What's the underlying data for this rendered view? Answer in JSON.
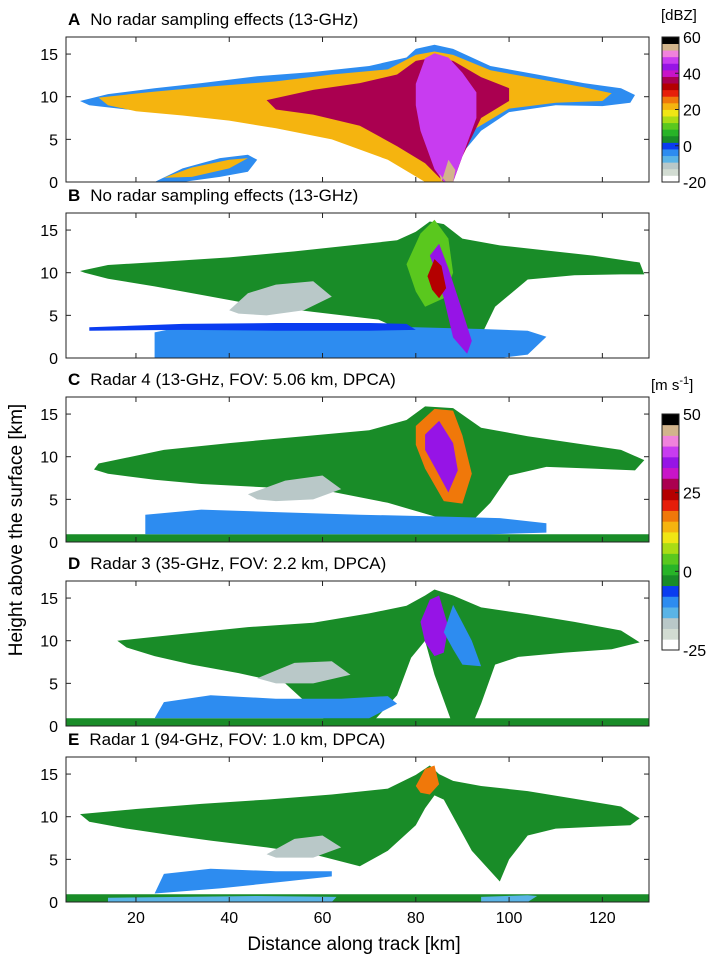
{
  "figure": {
    "xlabel": "Distance along track [km]",
    "ylabel": "Height above the surface [km]",
    "x_ticks": [
      "20",
      "40",
      "60",
      "80",
      "100",
      "120"
    ],
    "y_ticks": [
      "0",
      "5",
      "10",
      "15"
    ]
  },
  "colorbars": [
    {
      "unit": "[dBZ]",
      "range": [
        -20,
        60
      ],
      "ticks": [
        "60",
        "40",
        "20",
        "0",
        "-20"
      ],
      "colors": [
        "#ffffff",
        "#d2dcd2",
        "#b9c8c8",
        "#5ab4e6",
        "#2d8cf0",
        "#0a3cf0",
        "#198c28",
        "#28b428",
        "#5ac81e",
        "#aadc14",
        "#f0e614",
        "#f5b40f",
        "#f0780a",
        "#e61e0a",
        "#b40000",
        "#aa0050",
        "#c814c8",
        "#9614e6",
        "#c83cf0",
        "#f082dc",
        "#d2b48c",
        "#000000"
      ]
    },
    {
      "unit": "[m s",
      "unit_sup": "-1",
      "unit_close": "]",
      "range": [
        -25,
        50
      ],
      "ticks": [
        "50",
        "25",
        "0",
        "-25"
      ],
      "colors": [
        "#ffffff",
        "#d2dcd2",
        "#b9c8c8",
        "#5ab4e6",
        "#2d8cf0",
        "#0a3cf0",
        "#198c28",
        "#28b428",
        "#5ac81e",
        "#aadc14",
        "#f0e614",
        "#f5b40f",
        "#f0780a",
        "#e61e0a",
        "#b40000",
        "#aa0050",
        "#c814c8",
        "#9614e6",
        "#c83cf0",
        "#f082dc",
        "#d2b48c",
        "#000000"
      ]
    }
  ],
  "chart_data": [
    {
      "panel": "A",
      "type": "heatmap",
      "title": "No radar sampling effects (13-GHz)",
      "variable": "reflectivity",
      "colorbar": 0,
      "xlim": [
        5,
        130
      ],
      "ylim": [
        0,
        17
      ],
      "layers": [
        {
          "value": -5,
          "x": [
            8,
            14,
            24,
            34,
            46,
            58,
            70,
            78,
            80,
            84,
            88,
            96,
            106,
            116,
            124,
            127,
            126,
            120,
            110,
            100,
            94,
            90,
            88,
            86,
            80,
            72,
            60,
            48,
            38,
            28,
            18,
            10
          ],
          "y": [
            9.5,
            10.3,
            11,
            11.6,
            12.4,
            12.9,
            13.6,
            14.6,
            15.6,
            16.1,
            15.6,
            13.6,
            12.6,
            11.6,
            11,
            10.2,
            9.3,
            8.9,
            9,
            8.2,
            6,
            3.4,
            0,
            0,
            2,
            4.5,
            5.9,
            6.9,
            7.6,
            8.1,
            8.5,
            9
          ]
        },
        {
          "value": -5,
          "x": [
            24,
            30,
            38,
            44,
            46,
            44,
            38,
            30,
            24
          ],
          "y": [
            0,
            1.6,
            2.8,
            3.2,
            2.6,
            1.2,
            0.6,
            0,
            0
          ]
        },
        {
          "value": 20,
          "x": [
            12,
            24,
            36,
            50,
            62,
            74,
            80,
            84,
            88,
            96,
            106,
            116,
            122,
            120,
            110,
            100,
            92,
            88,
            86,
            82,
            74,
            62,
            50,
            40,
            30,
            20,
            14
          ],
          "y": [
            9.9,
            10.6,
            11.2,
            11.8,
            12.6,
            13.2,
            14.9,
            15.3,
            14.9,
            13.1,
            12.1,
            11.1,
            10.4,
            9.5,
            9.3,
            8.6,
            6,
            2.5,
            0,
            0,
            2.6,
            5,
            6.3,
            7.2,
            7.8,
            8.3,
            9
          ]
        },
        {
          "value": 20,
          "x": [
            26,
            32,
            40,
            44,
            40,
            32,
            26
          ],
          "y": [
            0.5,
            1.7,
            2.6,
            2.8,
            1.6,
            0.6,
            0.5
          ]
        },
        {
          "value": 35,
          "x": [
            48,
            58,
            68,
            76,
            80,
            84,
            88,
            94,
            100,
            100,
            94,
            90,
            88,
            86,
            82,
            76,
            68,
            58,
            50
          ],
          "y": [
            9.6,
            10.8,
            11.6,
            12.6,
            14.2,
            14.6,
            14.2,
            12.3,
            11,
            9.5,
            7.5,
            3,
            0,
            0,
            2.2,
            4.2,
            6.6,
            7.9,
            8.5
          ]
        },
        {
          "value": 47,
          "x": [
            80,
            82,
            84,
            87,
            90,
            93,
            93,
            90,
            88,
            86,
            84,
            81,
            80
          ],
          "y": [
            11.5,
            14.5,
            15.1,
            14.6,
            12.8,
            10.5,
            7.5,
            3,
            0,
            0,
            1.5,
            6,
            9
          ]
        },
        {
          "value": 55,
          "x": [
            85.5,
            87,
            88.5,
            88,
            86.5,
            85
          ],
          "y": [
            0,
            2.6,
            1.4,
            0,
            0,
            1
          ]
        }
      ]
    },
    {
      "panel": "B",
      "type": "heatmap",
      "title": "No radar sampling effects (13-GHz)",
      "variable": "Doppler velocity",
      "colorbar": 1,
      "xlim": [
        5,
        130
      ],
      "ylim": [
        0,
        17
      ],
      "layers": [
        {
          "value": -3,
          "x": [
            8,
            14,
            26,
            40,
            54,
            66,
            76,
            80,
            83,
            86,
            90,
            98,
            108,
            118,
            128,
            129,
            124,
            114,
            104,
            97,
            94,
            92,
            90,
            86,
            82,
            72,
            58,
            46,
            34,
            24,
            14,
            9
          ],
          "y": [
            10.2,
            10.9,
            11.3,
            11.8,
            12.5,
            13.2,
            13.8,
            14.8,
            16,
            15.7,
            14,
            13.2,
            12.6,
            12,
            11.2,
            9.8,
            9.8,
            9.7,
            9.2,
            6,
            2.6,
            0,
            0,
            0,
            2,
            4.5,
            5.4,
            6.2,
            7.4,
            8.4,
            9.3,
            10
          ]
        },
        {
          "value": -10,
          "x": [
            24,
            40,
            58,
            74,
            88,
            98,
            104,
            108,
            104,
            94,
            80,
            64,
            48,
            32,
            24
          ],
          "y": [
            0,
            0,
            0,
            0,
            0,
            0,
            0.4,
            2.5,
            3.2,
            3.4,
            3.6,
            3.7,
            3.8,
            3.9,
            3
          ]
        },
        {
          "value": -5,
          "x": [
            10,
            30,
            50,
            70,
            78,
            80,
            70,
            50,
            30,
            10
          ],
          "y": [
            3.6,
            4,
            4.1,
            4.1,
            4,
            3.3,
            3.2,
            3.2,
            3.3,
            3.2
          ]
        },
        {
          "value": -16,
          "x": [
            40,
            44,
            50,
            58,
            62,
            56,
            48,
            42
          ],
          "y": [
            5.6,
            7.6,
            8.6,
            9,
            7.2,
            5.6,
            5,
            5.2
          ]
        },
        {
          "value": 5,
          "x": [
            78,
            81,
            84,
            87,
            88,
            86,
            82,
            80
          ],
          "y": [
            11,
            14.6,
            16.2,
            14,
            10,
            7,
            6,
            7.8
          ]
        },
        {
          "value": 33,
          "x": [
            83,
            85,
            87,
            90,
            92,
            91,
            88,
            86,
            84
          ],
          "y": [
            12,
            13.4,
            10.5,
            5.5,
            2,
            0.5,
            2.4,
            7,
            10.6
          ]
        },
        {
          "value": 25,
          "x": [
            82.5,
            84,
            85.5,
            86.5,
            85,
            83.5
          ],
          "y": [
            9.6,
            11.6,
            10.8,
            8.2,
            7,
            8
          ]
        }
      ]
    },
    {
      "panel": "C",
      "type": "heatmap",
      "title": "Radar 4 (13-GHz, FOV: 5.06 km, DPCA)",
      "variable": "Doppler velocity",
      "colorbar": 1,
      "xlim": [
        5,
        130
      ],
      "ylim": [
        0,
        17
      ],
      "layers": [
        {
          "value": -3,
          "x": [
            5,
            130,
            130,
            5
          ],
          "y": [
            0,
            0,
            0.9,
            0.9
          ]
        },
        {
          "value": -3,
          "x": [
            12,
            26,
            40,
            56,
            70,
            78,
            82,
            88,
            94,
            104,
            114,
            124,
            129,
            127,
            118,
            108,
            100,
            96,
            92,
            84,
            74,
            62,
            48,
            34,
            24,
            14,
            11
          ],
          "y": [
            9.2,
            10.8,
            11.6,
            12.4,
            13.1,
            14.3,
            15.9,
            15.7,
            13.4,
            12.4,
            11.6,
            10.8,
            9.6,
            8.4,
            8.6,
            8.8,
            7.8,
            4.6,
            2.4,
            3,
            4.6,
            5.9,
            6.4,
            6.8,
            7.3,
            8,
            8.5
          ]
        },
        {
          "value": -10,
          "x": [
            22,
            40,
            60,
            80,
            96,
            108,
            108,
            98,
            84,
            68,
            50,
            34,
            22
          ],
          "y": [
            0.9,
            0.9,
            0.9,
            0.9,
            0.9,
            1.1,
            2.2,
            2.8,
            3,
            3.2,
            3.5,
            3.8,
            3.2
          ]
        },
        {
          "value": -16,
          "x": [
            44,
            52,
            60,
            64,
            58,
            50,
            46
          ],
          "y": [
            5.6,
            7.2,
            7.8,
            6.2,
            5,
            4.8,
            5
          ]
        },
        {
          "value": 18,
          "x": [
            80,
            84,
            88,
            90,
            92,
            90,
            86,
            82,
            80
          ],
          "y": [
            13.6,
            15.6,
            15.4,
            12.5,
            8,
            4.5,
            4.8,
            8.6,
            11.4
          ]
        },
        {
          "value": 35,
          "x": [
            82,
            85,
            88,
            89,
            87,
            84,
            82
          ],
          "y": [
            12.6,
            14.2,
            11.6,
            8.4,
            5.8,
            8.8,
            10.8
          ]
        }
      ]
    },
    {
      "panel": "D",
      "type": "heatmap",
      "title": "Radar 3 (35-GHz, FOV: 2.2 km, DPCA)",
      "variable": "Doppler velocity",
      "colorbar": 1,
      "xlim": [
        5,
        130
      ],
      "ylim": [
        0,
        17
      ],
      "layers": [
        {
          "value": -3,
          "x": [
            5,
            130,
            130,
            5
          ],
          "y": [
            0,
            0,
            0.9,
            0.9
          ]
        },
        {
          "value": -3,
          "x": [
            16,
            30,
            44,
            58,
            70,
            78,
            82,
            84,
            88,
            94,
            104,
            114,
            124,
            128,
            122,
            112,
            102,
            97,
            94,
            92,
            88,
            84,
            82,
            79,
            76,
            70,
            62,
            52,
            42,
            32,
            24,
            18
          ],
          "y": [
            10,
            10.8,
            11.6,
            12.1,
            13.2,
            14.1,
            15.3,
            16,
            15.3,
            13.9,
            13.1,
            12.2,
            11.2,
            9.8,
            9,
            8.6,
            8.1,
            7.2,
            2.6,
            0,
            0,
            6,
            10,
            8,
            3.6,
            0,
            0,
            5,
            6.2,
            7.2,
            8.2,
            9.2
          ]
        },
        {
          "value": -10,
          "x": [
            24,
            40,
            56,
            70,
            76,
            74,
            64,
            50,
            36,
            26
          ],
          "y": [
            0.9,
            0.9,
            0.9,
            0.9,
            2.6,
            3.5,
            3.2,
            3.2,
            3.6,
            2.8
          ]
        },
        {
          "value": -16,
          "x": [
            46,
            54,
            62,
            66,
            58,
            50
          ],
          "y": [
            5.6,
            7.4,
            7.6,
            6,
            5,
            5
          ]
        },
        {
          "value": 33,
          "x": [
            81,
            83,
            85,
            87,
            86,
            84,
            82
          ],
          "y": [
            12.2,
            14.8,
            15.3,
            11.6,
            8.6,
            8.2,
            9.8
          ]
        },
        {
          "value": -10,
          "x": [
            86,
            88,
            92,
            94,
            90,
            88
          ],
          "y": [
            11,
            14.2,
            10,
            7,
            7.2,
            9
          ]
        }
      ]
    },
    {
      "panel": "E",
      "type": "heatmap",
      "title": "Radar 1 (94-GHz, FOV: 1.0 km, DPCA)",
      "variable": "Doppler velocity",
      "colorbar": 1,
      "xlim": [
        5,
        130
      ],
      "ylim": [
        0,
        17
      ],
      "layers": [
        {
          "value": -3,
          "x": [
            5,
            130,
            130,
            5
          ],
          "y": [
            0,
            0,
            0.9,
            0.9
          ]
        },
        {
          "value": -13,
          "x": [
            14,
            30,
            46,
            62,
            63,
            46,
            30,
            14
          ],
          "y": [
            0,
            0,
            0,
            0,
            0.6,
            0.7,
            0.6,
            0.5
          ]
        },
        {
          "value": -13,
          "x": [
            94,
            104,
            106,
            104,
            94
          ],
          "y": [
            0,
            0,
            0.7,
            0.8,
            0.6
          ]
        },
        {
          "value": -3,
          "x": [
            8,
            20,
            34,
            48,
            62,
            74,
            80,
            83,
            85,
            88,
            94,
            104,
            114,
            124,
            128,
            126,
            118,
            110,
            104,
            100,
            98,
            92,
            86,
            84,
            82,
            80,
            74,
            68,
            58,
            48,
            36,
            28,
            18,
            10
          ],
          "y": [
            10.3,
            10.9,
            11.5,
            12,
            12.6,
            13.3,
            14.9,
            16,
            15,
            14.2,
            13.6,
            13,
            12.1,
            11.2,
            9.8,
            9,
            8.8,
            8.6,
            7.8,
            5,
            2.4,
            6,
            12,
            12.5,
            11,
            9,
            6,
            4.2,
            5.6,
            6.4,
            7.2,
            7.8,
            8.6,
            9.4
          ]
        },
        {
          "value": -10,
          "x": [
            24,
            38,
            52,
            62,
            62,
            50,
            36,
            26
          ],
          "y": [
            1,
            1.6,
            2.4,
            3,
            3.6,
            3.6,
            3.9,
            3.3
          ]
        },
        {
          "value": -16,
          "x": [
            48,
            54,
            60,
            64,
            58,
            50
          ],
          "y": [
            5.6,
            7.4,
            7.8,
            6.4,
            5.2,
            5.2
          ]
        },
        {
          "value": 18,
          "x": [
            80,
            82,
            84,
            85,
            83,
            81
          ],
          "y": [
            13.6,
            15.6,
            16,
            13.8,
            12.6,
            12.8
          ]
        }
      ]
    }
  ]
}
